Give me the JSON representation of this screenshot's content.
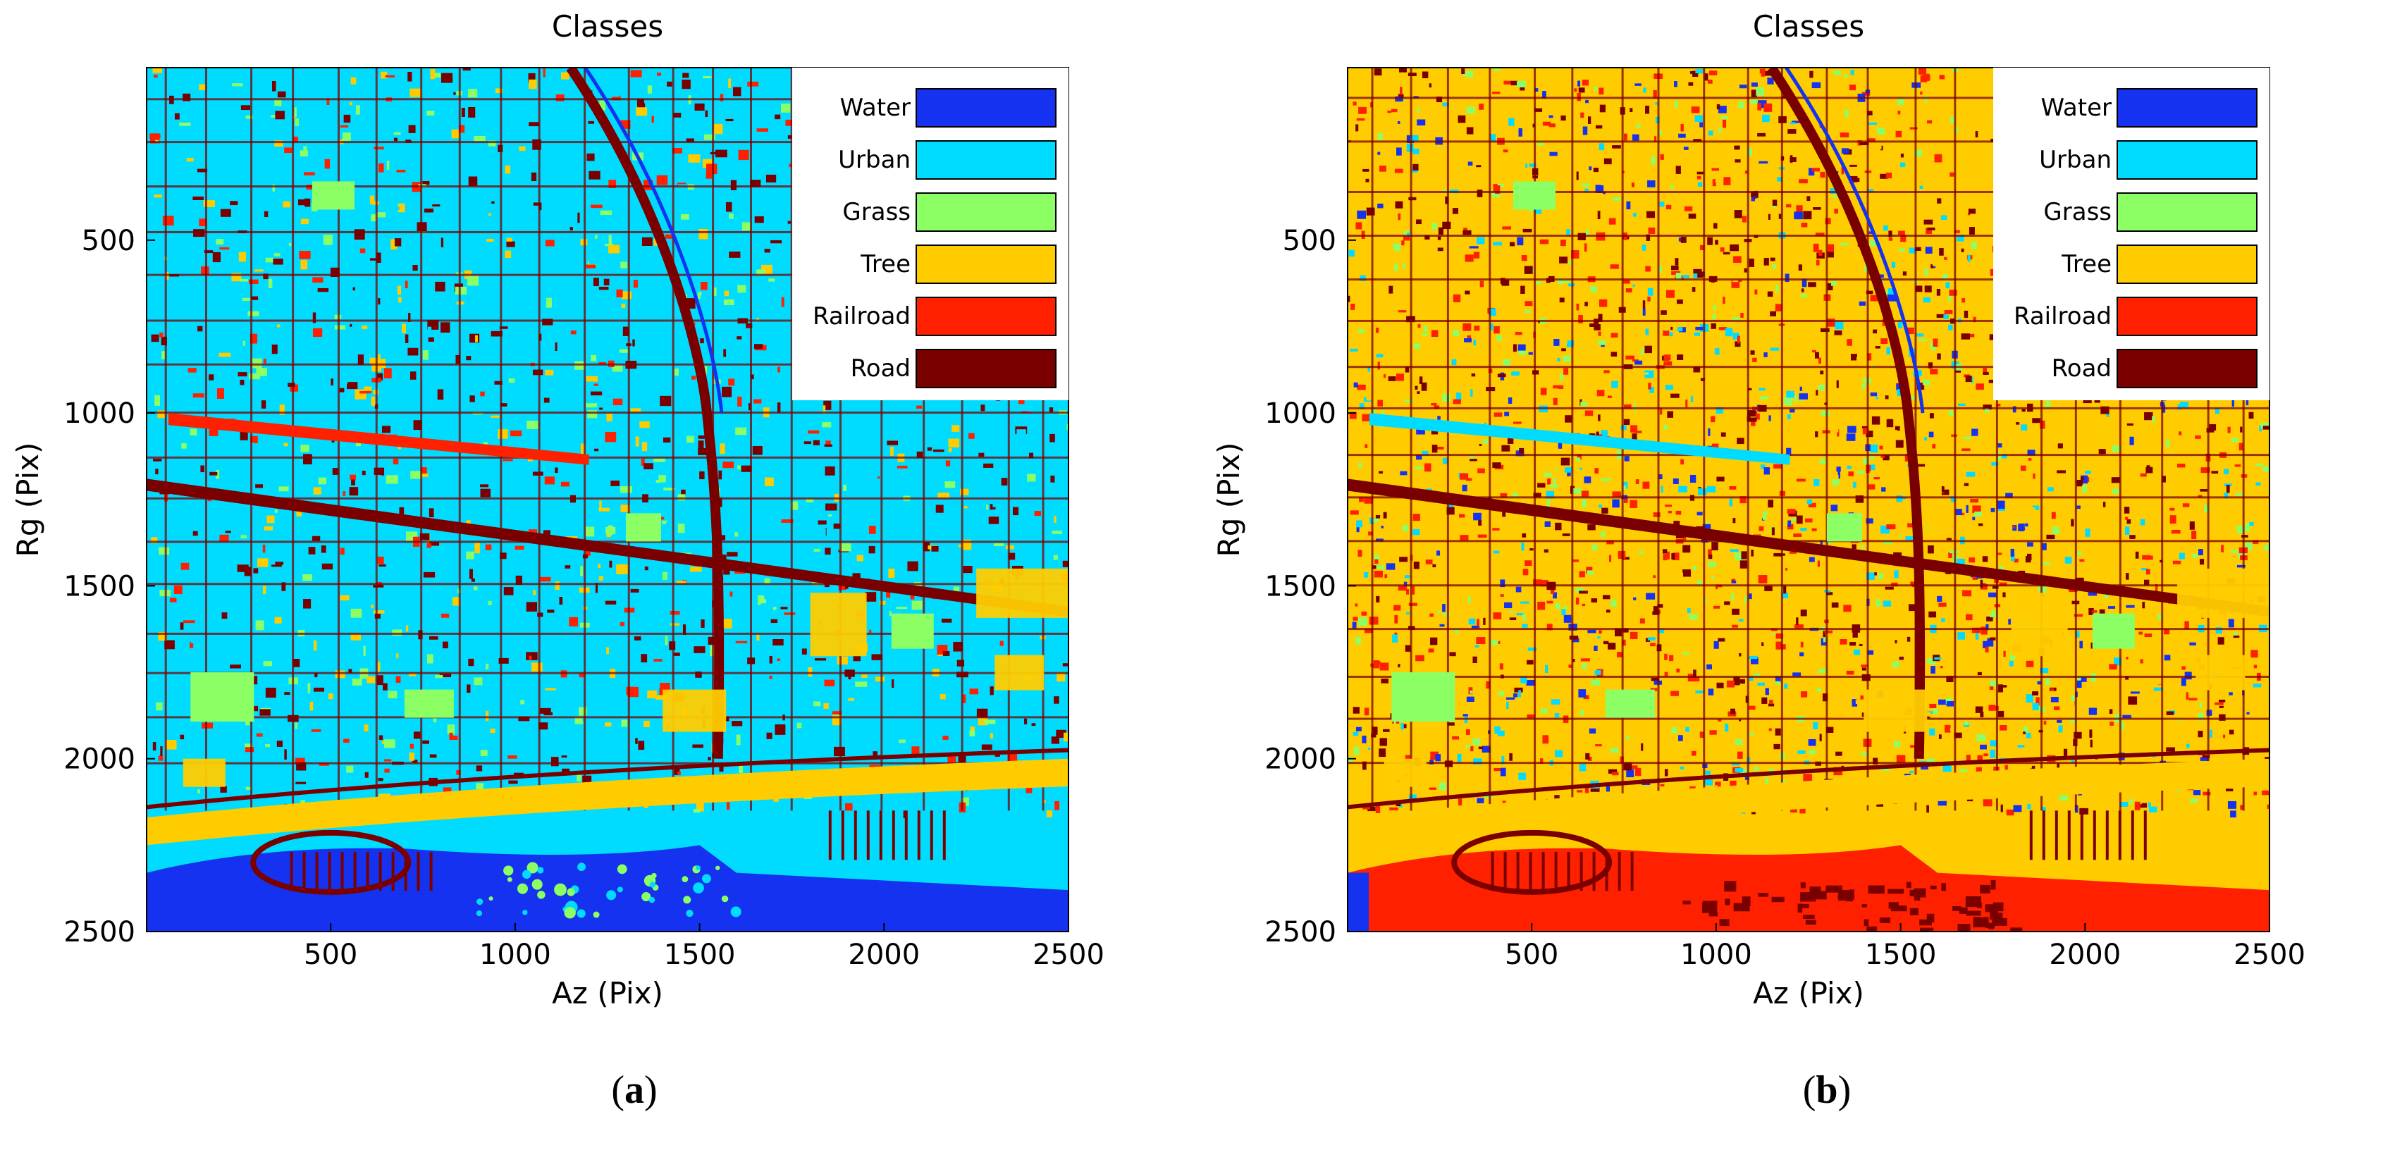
{
  "chart_data": [
    {
      "type": "heatmap",
      "panel_label": "a",
      "title": "Classes",
      "xlabel": "Az (Pix)",
      "ylabel": "Rg (Pix)",
      "xlim": [
        1,
        2500
      ],
      "ylim": [
        1,
        2500
      ],
      "y_reversed": true,
      "xticks": [
        500,
        1000,
        1500,
        2000,
        2500
      ],
      "yticks": [
        500,
        1000,
        1500,
        2000,
        2500
      ],
      "legend_position": "top-right",
      "classes": [
        {
          "name": "Water",
          "color": "#1432f0"
        },
        {
          "name": "Urban",
          "color": "#00dcff"
        },
        {
          "name": "Grass",
          "color": "#8cff64"
        },
        {
          "name": "Tree",
          "color": "#ffcc00"
        },
        {
          "name": "Railroad",
          "color": "#ff2000"
        },
        {
          "name": "Road",
          "color": "#7a0000"
        }
      ],
      "dominant_class": "Urban"
    },
    {
      "type": "heatmap",
      "panel_label": "b",
      "title": "Classes",
      "xlabel": "Az (Pix)",
      "ylabel": "Rg (Pix)",
      "xlim": [
        1,
        2500
      ],
      "ylim": [
        1,
        2500
      ],
      "y_reversed": true,
      "xticks": [
        500,
        1000,
        1500,
        2000,
        2500
      ],
      "yticks": [
        500,
        1000,
        1500,
        2000,
        2500
      ],
      "legend_position": "top-right",
      "classes": [
        {
          "name": "Water",
          "color": "#1432f0"
        },
        {
          "name": "Urban",
          "color": "#00dcff"
        },
        {
          "name": "Grass",
          "color": "#8cff64"
        },
        {
          "name": "Tree",
          "color": "#ffcc00"
        },
        {
          "name": "Railroad",
          "color": "#ff2000"
        },
        {
          "name": "Road",
          "color": "#7a0000"
        }
      ],
      "dominant_class": "Tree"
    }
  ]
}
